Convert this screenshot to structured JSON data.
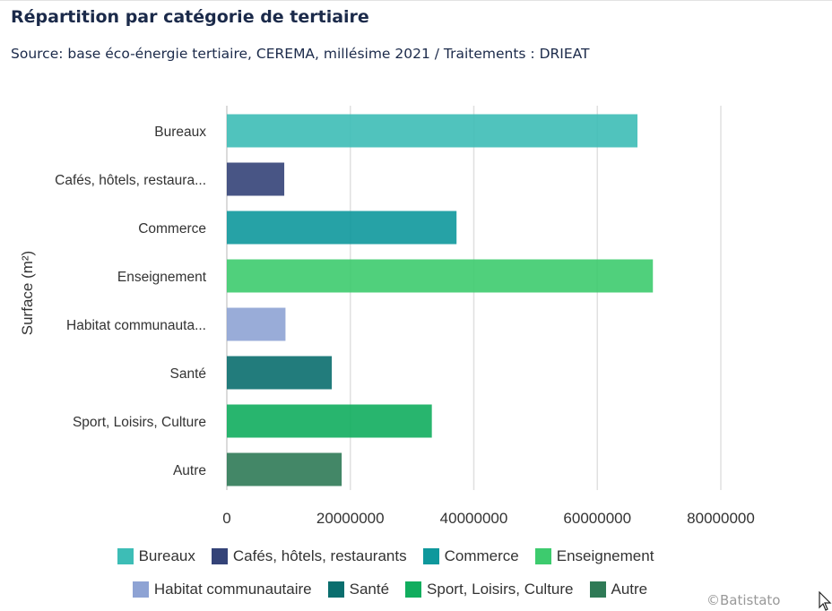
{
  "title": "Répartition par catégorie de tertiaire",
  "subtitle": "Source: base éco-énergie tertiaire, CEREMA, millésime 2021 / Traitements : DRIEAT",
  "credit": "©Batistato",
  "chart_data": {
    "type": "bar",
    "orientation": "horizontal",
    "ylabel": "Surface (m²)",
    "categories": [
      "Bureaux",
      "Cafés, hôtels, restaura...",
      "Commerce",
      "Enseignement",
      "Habitat communauta...",
      "Santé",
      "Sport, Loisirs, Culture",
      "Autre"
    ],
    "values": [
      66500000,
      9300000,
      37200000,
      69000000,
      9500000,
      17000000,
      33200000,
      18600000
    ],
    "colors": [
      "#3dbdb6",
      "#344378",
      "#0e989c",
      "#3dcb6e",
      "#8ea3d4",
      "#0a6e6e",
      "#11ad5e",
      "#2f7a56"
    ],
    "xlim": [
      0,
      80000000
    ],
    "xticks": [
      "0",
      "20000000",
      "40000000",
      "60000000",
      "80000000"
    ],
    "grid": true,
    "legend": [
      "Bureaux",
      "Cafés, hôtels, restaurants",
      "Commerce",
      "Enseignement",
      "Habitat communautaire",
      "Santé",
      "Sport, Loisirs, Culture",
      "Autre"
    ],
    "legend_placement": "bottom"
  }
}
